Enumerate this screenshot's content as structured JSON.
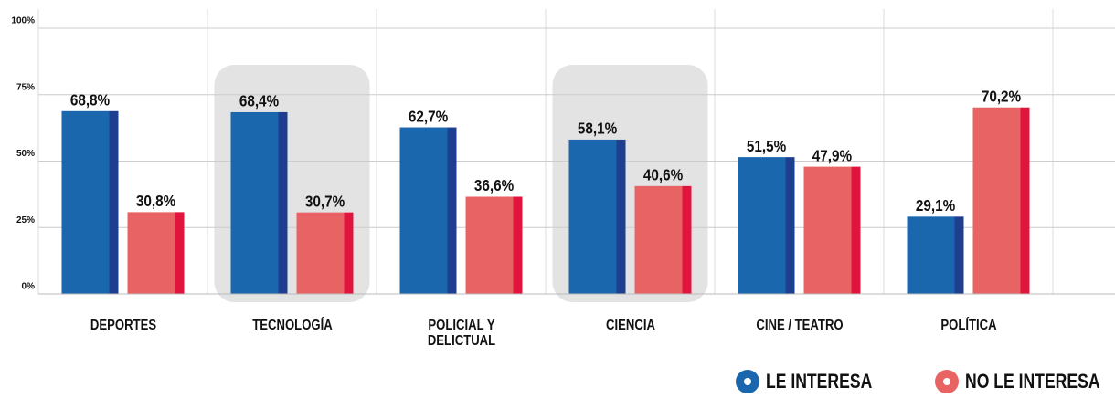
{
  "chart_data": {
    "type": "bar",
    "categories": [
      "DEPORTES",
      "TECNOLOGÍA",
      "POLICIAL Y\nDELICTUAL",
      "CIENCIA",
      "CINE / TEATRO",
      "POLÍTICA"
    ],
    "series": [
      {
        "name": "LE INTERESA",
        "color": "#1a67ad",
        "side_color": "#1e3f8f",
        "values": [
          68.8,
          68.4,
          62.7,
          58.1,
          51.5,
          29.1
        ],
        "value_labels": [
          "68,8%",
          "68,4%",
          "62,7%",
          "58,1%",
          "51,5%",
          "29,1%"
        ]
      },
      {
        "name": "NO LE INTERESA",
        "color": "#e86464",
        "side_color": "#e0143c",
        "values": [
          30.8,
          30.7,
          36.6,
          40.6,
          47.9,
          70.2
        ],
        "value_labels": [
          "30,8%",
          "30,7%",
          "36,6%",
          "40,6%",
          "47,9%",
          "70,2%"
        ]
      }
    ],
    "ylim": [
      0,
      100
    ],
    "yticks": [
      {
        "value": 0,
        "label": "0%"
      },
      {
        "value": 25,
        "label": "25%"
      },
      {
        "value": 50,
        "label": "50%"
      },
      {
        "value": 75,
        "label": "75%"
      },
      {
        "value": 100,
        "label": "100%"
      }
    ],
    "grid": true,
    "legend": "bottom-right"
  }
}
